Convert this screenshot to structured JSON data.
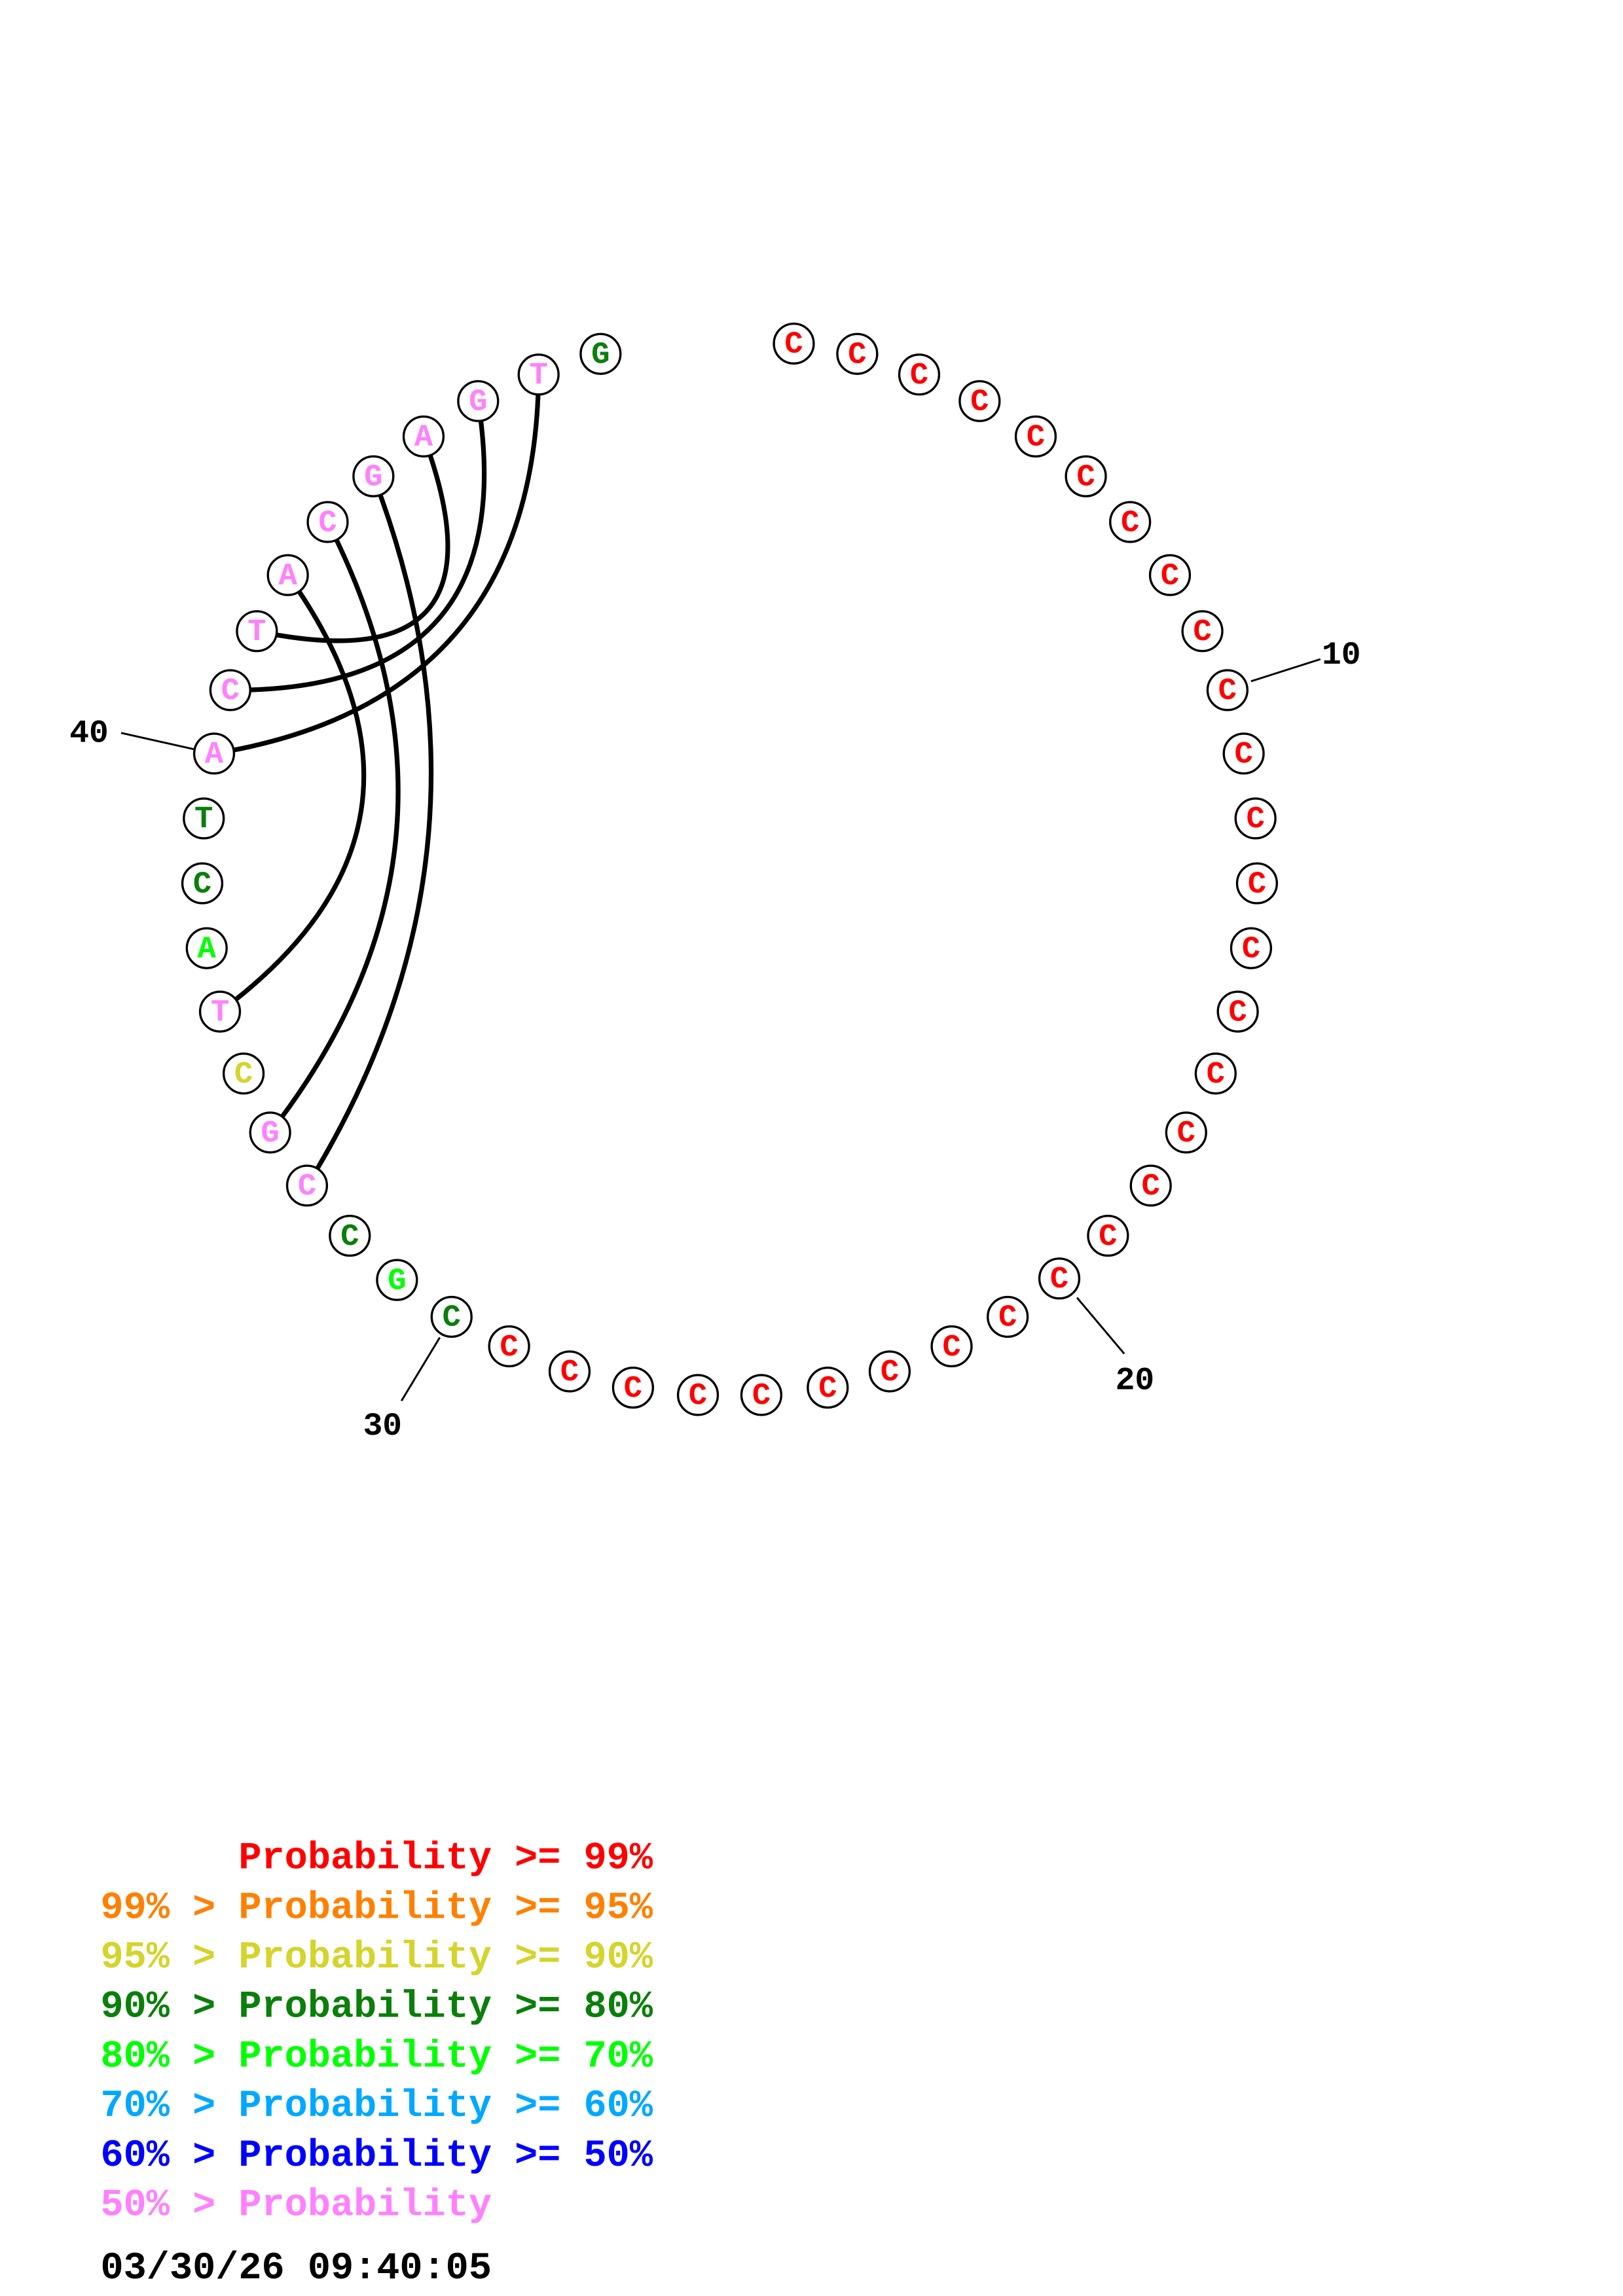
{
  "sequence": [
    "C",
    "C",
    "C",
    "C",
    "C",
    "C",
    "C",
    "C",
    "C",
    "C",
    "C",
    "C",
    "C",
    "C",
    "C",
    "C",
    "C",
    "C",
    "C",
    "C",
    "C",
    "C",
    "C",
    "C",
    "C",
    "C",
    "C",
    "C",
    "C",
    "C",
    "G",
    "C",
    "C",
    "G",
    "C",
    "T",
    "A",
    "C",
    "T",
    "A",
    "C",
    "T",
    "A",
    "C",
    "G",
    "A",
    "G",
    "T",
    "G"
  ],
  "probability_class": [
    0,
    0,
    0,
    0,
    0,
    0,
    0,
    0,
    0,
    0,
    0,
    0,
    0,
    0,
    0,
    0,
    0,
    0,
    0,
    0,
    0,
    0,
    0,
    0,
    0,
    0,
    0,
    0,
    0,
    3,
    4,
    3,
    7,
    7,
    2,
    7,
    4,
    3,
    3,
    7,
    7,
    7,
    7,
    7,
    7,
    7,
    7,
    7,
    3
  ],
  "pairs": [
    [
      48,
      40
    ],
    [
      47,
      41
    ],
    [
      46,
      42
    ],
    [
      43,
      36
    ],
    [
      44,
      34
    ],
    [
      45,
      33
    ]
  ],
  "position_labels": [
    {
      "index": 10,
      "text": "10"
    },
    {
      "index": 20,
      "text": "20"
    },
    {
      "index": 30,
      "text": "30"
    },
    {
      "index": 40,
      "text": "40"
    }
  ],
  "legend": [
    {
      "text": "      Probability >= 99%",
      "color": "#ff0000"
    },
    {
      "text": "99% > Probability >= 95%",
      "color": "#ff8000"
    },
    {
      "text": "95% > Probability >= 90%",
      "color": "#d4d42c"
    },
    {
      "text": "90% > Probability >= 80%",
      "color": "#0a7f0a"
    },
    {
      "text": "80% > Probability >= 70%",
      "color": "#00ff00"
    },
    {
      "text": "70% > Probability >= 60%",
      "color": "#00a8ff"
    },
    {
      "text": "60% > Probability >= 50%",
      "color": "#0000ff"
    },
    {
      "text": "50% > Probability",
      "color": "#ff80ff"
    }
  ],
  "timestamp": "03/30/26 09:40:05"
}
